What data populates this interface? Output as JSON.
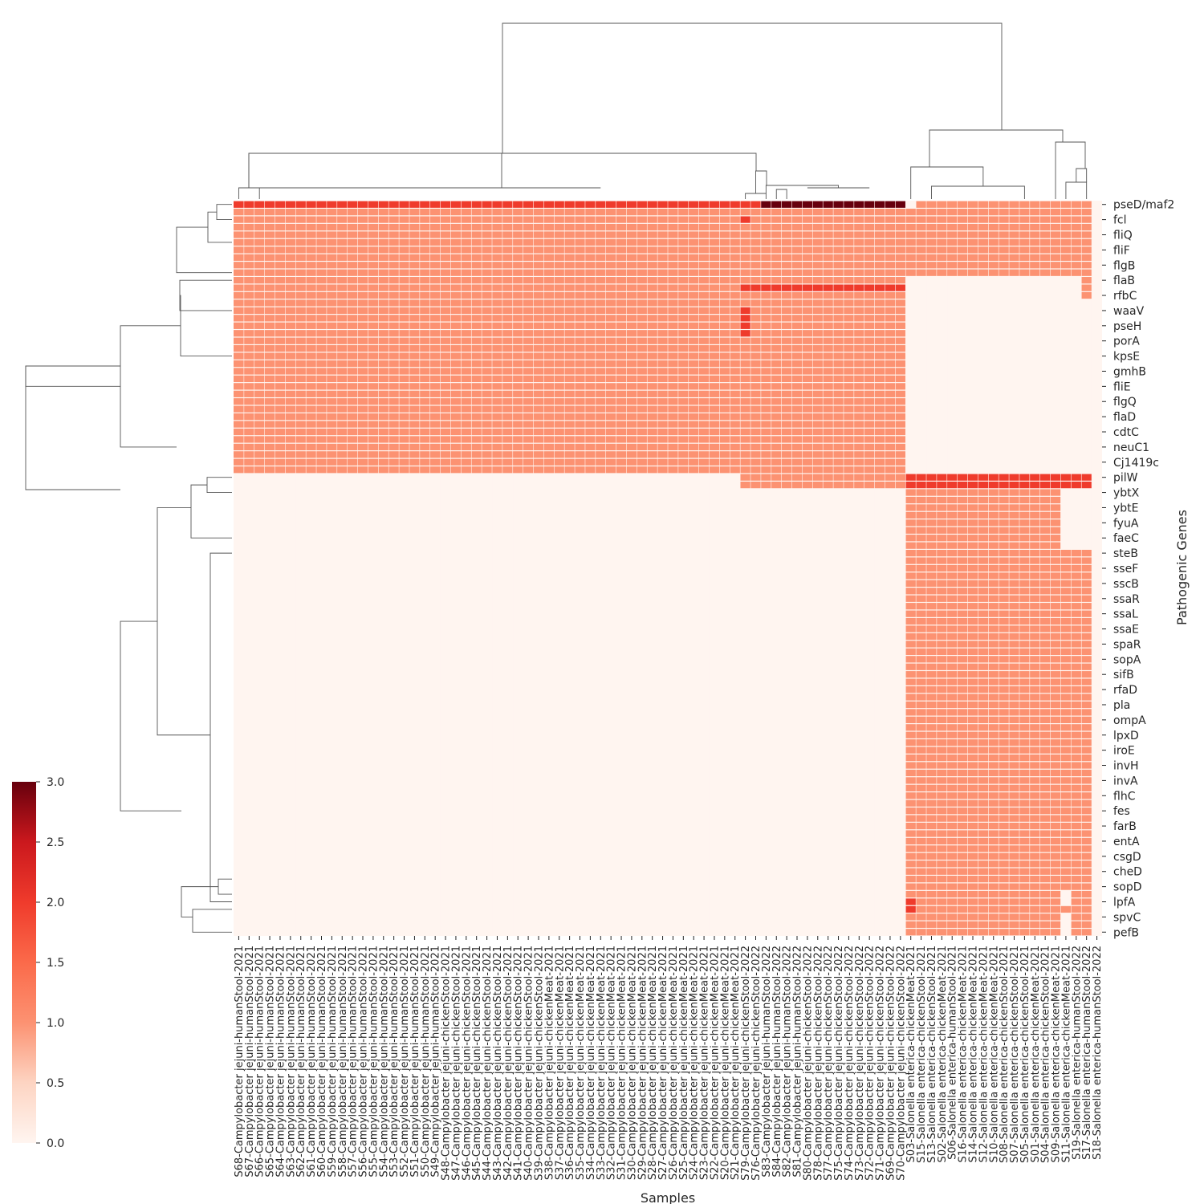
{
  "chart_data": {
    "type": "heatmap",
    "title": "",
    "xlabel": "Samples",
    "ylabel": "Pathogenic Genes",
    "colormap": "Reds",
    "colors": {
      "0": "#fff5f0",
      "1": "#fc9272",
      "2": "#ef3b2c",
      "3": "#67000d",
      "cell_gap": "#fff5f0",
      "dendrogram_line": "#555555"
    },
    "colorbar": {
      "min": 0.0,
      "max": 3.0,
      "ticks": [
        "0.0",
        "0.5",
        "1.0",
        "1.5",
        "2.0",
        "2.5",
        "3.0"
      ]
    },
    "sample_labels": [
      "S68-Campylobacter jejuni-humanStool-2021",
      "S67-Campylobacter jejuni-humanStool-2021",
      "S66-Campylobacter jejuni-humanStool-2021",
      "S65-Campylobacter jejuni-humanStool-2021",
      "S64-Campylobacter jejuni-humanStool-2021",
      "S63-Campylobacter jejuni-humanStool-2021",
      "S62-Campylobacter jejuni-humanStool-2021",
      "S61-Campylobacter jejuni-humanStool-2021",
      "S60-Campylobacter jejuni-humanStool-2021",
      "S59-Campylobacter jejuni-humanStool-2021",
      "S58-Campylobacter jejuni-humanStool-2021",
      "S57-Campylobacter jejuni-humanStool-2021",
      "S56-Campylobacter jejuni-humanStool-2021",
      "S55-Campylobacter jejuni-humanStool-2021",
      "S54-Campylobacter jejuni-humanStool-2021",
      "S53-Campylobacter jejuni-humanStool-2021",
      "S52-Campylobacter jejuni-humanStool-2021",
      "S51-Campylobacter jejuni-humanStool-2021",
      "S50-Campylobacter jejuni-humanStool-2021",
      "S49-Campylobacter jejuni-humanStool-2021",
      "S48-Campylobacter jejuni-chickenStool-2021",
      "S47-Campylobacter jejuni-chickenStool-2021",
      "S46-Campylobacter jejuni-chickenStool-2021",
      "S45-Campylobacter jejuni-chickenStool-2021",
      "S44-Campylobacter jejuni-chickenStool-2021",
      "S43-Campylobacter jejuni-chickenStool-2021",
      "S42-Campylobacter jejuni-chickenStool-2021",
      "S41-Campylobacter jejuni-chickenStool-2021",
      "S40-Campylobacter jejuni-chickenStool-2021",
      "S39-Campylobacter jejuni-chickenStool-2021",
      "S38-Campylobacter jejuni-chickenMeat-2021",
      "S37-Campylobacter jejuni-chickenMeat-2021",
      "S36-Campylobacter jejuni-chickenMeat-2021",
      "S35-Campylobacter jejuni-chickenMeat-2021",
      "S34-Campylobacter jejuni-chickenMeat-2021",
      "S33-Campylobacter jejuni-chickenMeat-2021",
      "S32-Campylobacter jejuni-chickenMeat-2021",
      "S31-Campylobacter jejuni-chickenMeat-2021",
      "S30-Campylobacter jejuni-chickenMeat-2021",
      "S29-Campylobacter jejuni-chickenMeat-2021",
      "S28-Campylobacter jejuni-chickenMeat-2021",
      "S27-Campylobacter jejuni-chickenMeat-2021",
      "S26-Campylobacter jejuni-chickenMeat-2021",
      "S25-Campylobacter jejuni-chickenMeat-2021",
      "S24-Campylobacter jejuni-chickenMeat-2021",
      "S23-Campylobacter jejuni-chickenMeat-2021",
      "S22-Campylobacter jejuni-chickenMeat-2021",
      "S20-Campylobacter jejuni-chickenMeat-2021",
      "S21-Campylobacter jejuni-chickenMeat-2021",
      "S79-Campylobacter jejuni-chickenStool-2022",
      "S76-Campylobacter jejuni-chickenStool-2022",
      "S83-Campylobacter jejuni-humanStool-2022",
      "S84-Campylobacter jejuni-humanStool-2022",
      "S82-Campylobacter jejuni-humanStool-2022",
      "S81-Campylobacter jejuni-humanStool-2022",
      "S80-Campylobacter jejuni-chickenStool-2022",
      "S78-Campylobacter jejuni-chickenStool-2022",
      "S77-Campylobacter jejuni-chickenStool-2022",
      "S75-Campylobacter jejuni-chickenStool-2022",
      "S74-Campylobacter jejuni-chickenStool-2022",
      "S73-Campylobacter jejuni-chickenStool-2022",
      "S72-Campylobacter jejuni-chickenStool-2022",
      "S71-Campylobacter jejuni-chickenStool-2022",
      "S69-Campylobacter jejuni-chickenStool-2022",
      "S70-Campylobacter jejuni-chickenStool-2022",
      "S03-Salonella enterica-chickenMeat-2021",
      "S15-Salonella enterica-chickenStool-2021",
      "S13-Salonella enterica-chickenStool-2021",
      "S02-Salonella enterica-chickenMeat-2021",
      "S06-Salonella enterica-humanStool-2021",
      "S16-Salonella enterica-chickenMeat-2021",
      "S14-Salonella enterica-chickenMeat-2021",
      "S12-Salonella enterica-chickenMeat-2021",
      "S10-Salonella enterica-chickenMeat-2021",
      "S08-Salonella enterica-chickenStool-2021",
      "S07-Salonella enterica-chickenStool-2021",
      "S05-Salonella enterica-chickenStool-2021",
      "S01-Salonella enterica-chickenMeat-2021",
      "S04-Salonella enterica-chickenStool-2021",
      "S09-Salonella enterica-chickenMeat-2021",
      "S11-Salonella enterica-chickenMeat-2021",
      "S19-Salonella enterica-humanStool-2022",
      "S17-Salonella enterica-humanStool-2022",
      "S18-Salonella enterica-humanStool-2022"
    ],
    "gene_labels": [
      "pseD/maf2",
      "fcl",
      "fliQ",
      "fliF",
      "flgB",
      "flaB",
      "rfbC",
      "waaV",
      "pseH",
      "porA",
      "kpsE",
      "gmhB",
      "fliE",
      "flgQ",
      "flaD",
      "cdtC",
      "neuC1",
      "Cj1419c",
      "pilW",
      "ybtX",
      "ybtE",
      "fyuA",
      "faeC",
      "steB",
      "sseF",
      "sscB",
      "ssaR",
      "ssaL",
      "ssaE",
      "spaR",
      "sopA",
      "sifB",
      "rfaD",
      "pla",
      "ompA",
      "lpxD",
      "iroE",
      "invH",
      "invA",
      "flhC",
      "fes",
      "farB",
      "entA",
      "csgD",
      "cheD",
      "sopD",
      "lpfA",
      "spvC",
      "pefB"
    ],
    "gene_label_rows": [
      0,
      2,
      4,
      6,
      8,
      10,
      12,
      14,
      16,
      18,
      20,
      22,
      24,
      26,
      28,
      30,
      32,
      34,
      36,
      38,
      40,
      42,
      44,
      46,
      48,
      50,
      52,
      54,
      56,
      58,
      60,
      62,
      64,
      66,
      68,
      70,
      72,
      74,
      76,
      78,
      80,
      82,
      84,
      86,
      88,
      90,
      92,
      94,
      96
    ],
    "n_rows": 97,
    "row_groups": [
      {
        "genes": "pseD/maf2 – flgB",
        "rows": [
          0,
          9
        ]
      },
      {
        "genes": "flaB – Cj1419c",
        "rows": [
          10,
          35
        ]
      },
      {
        "genes": "pilW",
        "rows": [
          36,
          37
        ]
      },
      {
        "genes": "ybtX – faeC",
        "rows": [
          38,
          45
        ]
      },
      {
        "genes": "steB – sopD",
        "rows": [
          46,
          90
        ]
      },
      {
        "genes": "lpfA – pefB",
        "rows": [
          91,
          96
        ]
      }
    ],
    "value_matrix_by_group": {
      "S68–S21 (Campylobacter 2021)": [
        1,
        1,
        0,
        0,
        0,
        0
      ],
      "S79–S70 (Campylobacter 2022)": [
        1,
        1,
        1,
        0,
        0,
        0
      ],
      "S03–S09 (Salonella enterica 2021)": [
        1,
        0,
        2,
        1,
        1,
        1
      ],
      "S11–S18 (Salonella enterica)": [
        1,
        0,
        2,
        0,
        1,
        1
      ]
    },
    "highlights": [
      {
        "gene": "pseD/maf2",
        "samples": "S83–S70",
        "value": 3
      },
      {
        "gene": "pseD/maf2",
        "samples": "S68–S21",
        "value": 2
      },
      {
        "gene": "flaB",
        "samples": "S79–S70",
        "value": 2
      },
      {
        "gene": "rfbC",
        "samples": "S79",
        "value": 2
      },
      {
        "gene": "pilW",
        "samples": "S03–S09",
        "value": 2
      },
      {
        "gene": "lpfA",
        "samples": "S03",
        "value": 2
      }
    ]
  }
}
